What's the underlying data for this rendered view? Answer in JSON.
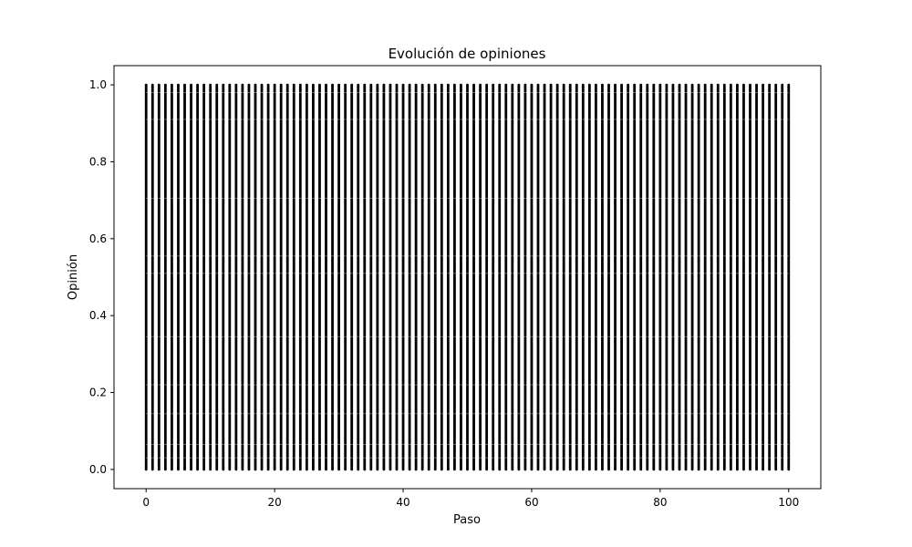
{
  "chart_data": {
    "type": "scatter",
    "title": "Evolución de opiniones",
    "xlabel": "Paso",
    "ylabel": "Opinión",
    "xlim": [
      -5,
      105
    ],
    "ylim": [
      -0.05,
      1.05
    ],
    "x_ticks": [
      0,
      20,
      40,
      60,
      80,
      100
    ],
    "x_tick_labels": [
      "0",
      "20",
      "40",
      "60",
      "80",
      "100"
    ],
    "y_ticks": [
      0.0,
      0.2,
      0.4,
      0.6,
      0.8,
      1.0
    ],
    "y_tick_labels": [
      "0.0",
      "0.2",
      "0.4",
      "0.6",
      "0.8",
      "1.0"
    ],
    "grid": false,
    "legend": "none",
    "marker_color": "#000000",
    "steps": {
      "start": 0,
      "end": 100,
      "every": 1
    },
    "opinion_range_per_step": {
      "min": 0.0,
      "max": 1.0
    },
    "sampled_points": [
      {
        "x": 0,
        "y": 0.0
      },
      {
        "x": 0,
        "y": 0.25
      },
      {
        "x": 0,
        "y": 0.5
      },
      {
        "x": 0,
        "y": 0.75
      },
      {
        "x": 0,
        "y": 1.0
      },
      {
        "x": 50,
        "y": 0.0
      },
      {
        "x": 50,
        "y": 0.25
      },
      {
        "x": 50,
        "y": 0.5
      },
      {
        "x": 50,
        "y": 0.75
      },
      {
        "x": 50,
        "y": 1.0
      },
      {
        "x": 100,
        "y": 0.0
      },
      {
        "x": 100,
        "y": 0.25
      },
      {
        "x": 100,
        "y": 0.5
      },
      {
        "x": 100,
        "y": 0.75
      },
      {
        "x": 100,
        "y": 1.0
      }
    ]
  }
}
